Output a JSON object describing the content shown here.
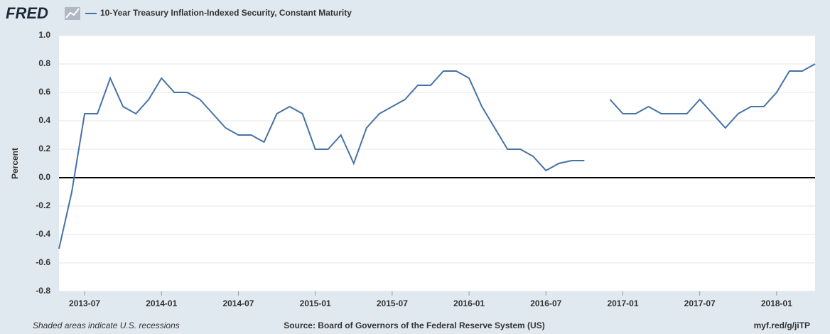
{
  "chart_data": {
    "type": "line",
    "logo": "FRED",
    "y_label": "Percent",
    "notes": {
      "left": "Shaded areas indicate U.S. recessions",
      "center": "Source: Board of Governors of the Federal Reserve System (US)",
      "right": "myf.red/g/jiTP"
    },
    "x": [
      "2013-05",
      "2013-06",
      "2013-07",
      "2013-08",
      "2013-09",
      "2013-10",
      "2013-11",
      "2013-12",
      "2014-01",
      "2014-02",
      "2014-03",
      "2014-04",
      "2014-05",
      "2014-06",
      "2014-07",
      "2014-08",
      "2014-09",
      "2014-10",
      "2014-11",
      "2014-12",
      "2015-01",
      "2015-02",
      "2015-03",
      "2015-04",
      "2015-05",
      "2015-06",
      "2015-07",
      "2015-08",
      "2015-09",
      "2015-10",
      "2015-11",
      "2015-12",
      "2016-01",
      "2016-02",
      "2016-03",
      "2016-04",
      "2016-05",
      "2016-06",
      "2016-07",
      "2016-08",
      "2016-09",
      "2016-10",
      "2016-11",
      "2016-12",
      "2017-01",
      "2017-02",
      "2017-03",
      "2017-04",
      "2017-05",
      "2017-06",
      "2017-07",
      "2017-08",
      "2017-09",
      "2017-10",
      "2017-11",
      "2017-12",
      "2018-01",
      "2018-02",
      "2018-03",
      "2018-04"
    ],
    "series": [
      {
        "name": "10-Year Treasury Inflation-Indexed Security, Constant Maturity",
        "color": "#4572a7",
        "values": [
          -0.5,
          -0.1,
          0.45,
          0.45,
          0.7,
          0.5,
          0.45,
          0.55,
          0.7,
          0.6,
          0.6,
          0.55,
          0.45,
          0.35,
          0.3,
          0.3,
          0.25,
          0.45,
          0.5,
          0.45,
          0.2,
          0.2,
          0.3,
          0.1,
          0.35,
          0.45,
          0.5,
          0.55,
          0.65,
          0.65,
          0.75,
          0.75,
          0.7,
          0.5,
          0.35,
          0.2,
          0.2,
          0.15,
          0.05,
          0.1,
          0.12,
          0.12,
          null,
          0.55,
          0.45,
          0.45,
          0.5,
          0.45,
          0.45,
          0.45,
          0.55,
          0.45,
          0.35,
          0.45,
          0.5,
          0.5,
          0.6,
          0.75,
          0.75,
          0.8
        ]
      }
    ],
    "xlim": [
      "2013-05",
      "2018-04"
    ],
    "xticks": [
      "2013-07",
      "2014-01",
      "2014-07",
      "2015-01",
      "2015-07",
      "2016-01",
      "2016-07",
      "2017-01",
      "2017-07",
      "2018-01"
    ],
    "ylim": [
      -0.8,
      1
    ],
    "yticks": [
      {
        "value": 1,
        "label": "1.0"
      },
      0.8,
      0.6,
      0.4,
      0.2,
      {
        "value": 0,
        "label": "0.0"
      },
      -0.2,
      -0.4,
      -0.6,
      -0.8
    ],
    "grid": true,
    "zero_line": true
  }
}
